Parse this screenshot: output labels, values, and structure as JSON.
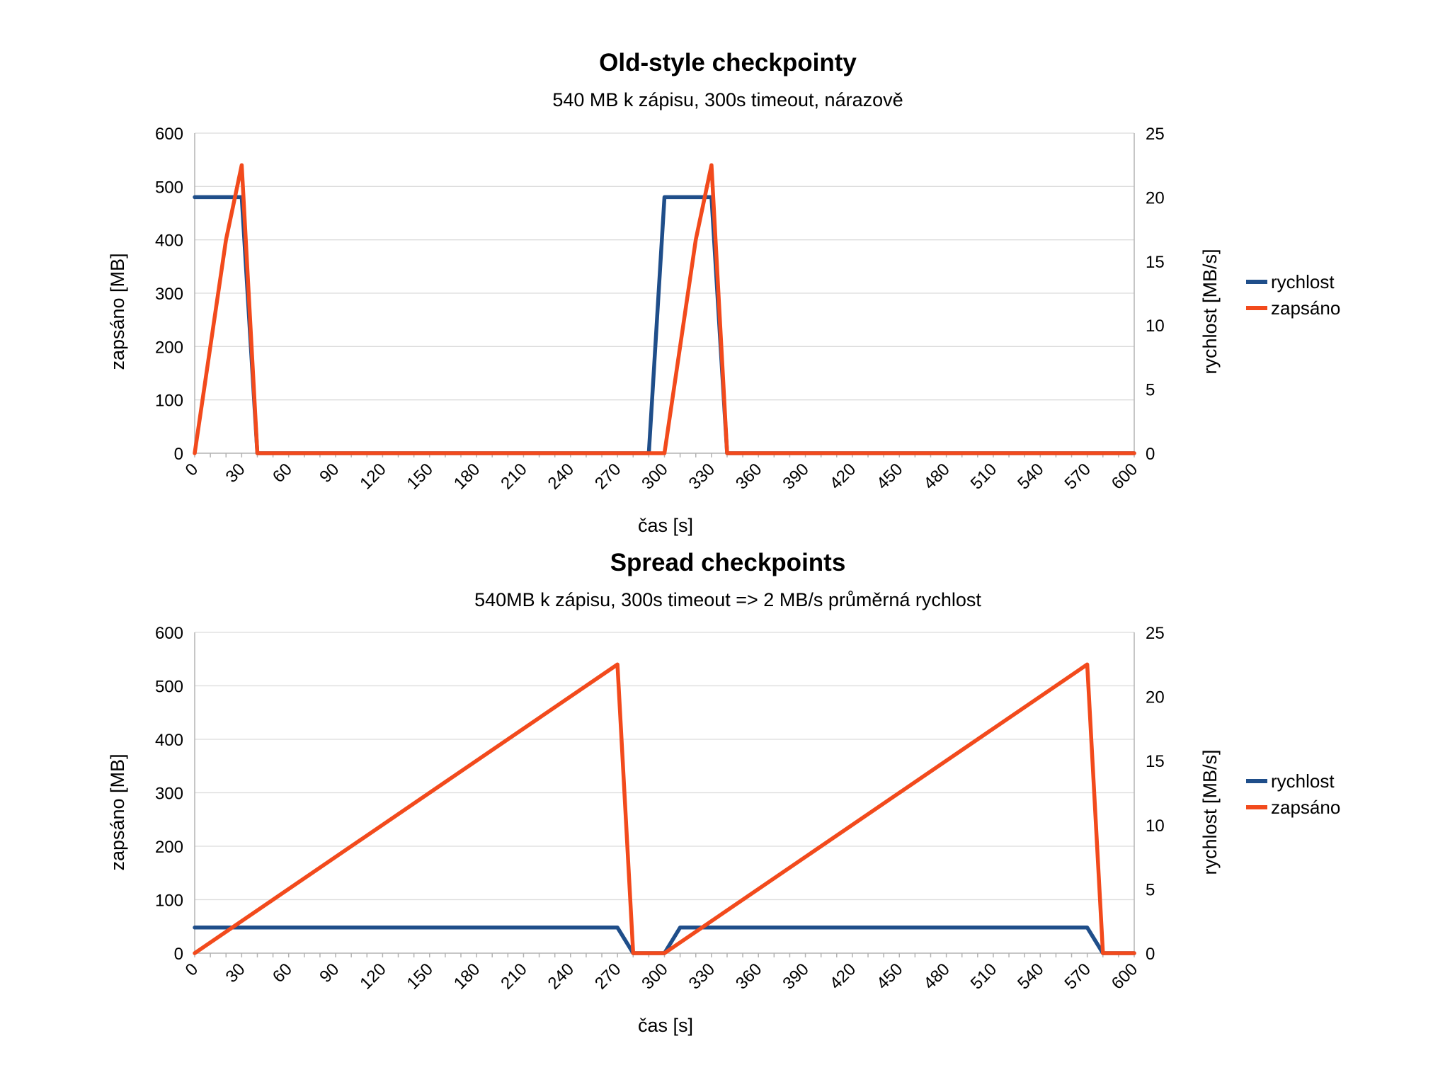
{
  "colors": {
    "rychlost": "#1f4e8a",
    "zapsano": "#f24a1c"
  },
  "chart_data": [
    {
      "type": "line",
      "title": "Old-style checkpointy",
      "subtitle": "540 MB k zápisu, 300s timeout, nárazově",
      "xlabel": "čas [s]",
      "ylabel": "zapsáno [MB]",
      "y2label": "rychlost [MB/s]",
      "xlim": [
        0,
        600
      ],
      "ylim": [
        0,
        600
      ],
      "y2lim": [
        0,
        25
      ],
      "xticks": [
        "0",
        "30",
        "60",
        "90",
        "120",
        "150",
        "180",
        "210",
        "240",
        "270",
        "300",
        "330",
        "360",
        "390",
        "420",
        "450",
        "480",
        "510",
        "540",
        "570",
        "600"
      ],
      "yticks": [
        "0",
        "100",
        "200",
        "300",
        "400",
        "500",
        "600"
      ],
      "y2ticks": [
        "0",
        "5",
        "10",
        "15",
        "20",
        "25"
      ],
      "legend_position": "right",
      "series": [
        {
          "name": "rychlost",
          "axis": "right",
          "color": "#1f4e8a",
          "x": [
            0,
            30,
            40,
            290,
            300,
            330,
            340,
            600
          ],
          "y": [
            20,
            20,
            0,
            0,
            20,
            20,
            0,
            0
          ]
        },
        {
          "name": "zapsáno",
          "axis": "left",
          "color": "#f24a1c",
          "x": [
            0,
            20,
            30,
            40,
            300,
            320,
            330,
            340,
            600
          ],
          "y": [
            0,
            400,
            540,
            0,
            0,
            400,
            540,
            0,
            0
          ]
        }
      ]
    },
    {
      "type": "line",
      "title": "Spread checkpoints",
      "subtitle": "540MB k zápisu, 300s timeout => 2 MB/s průměrná rychlost",
      "xlabel": "čas [s]",
      "ylabel": "zapsáno [MB]",
      "y2label": "rychlost [MB/s]",
      "xlim": [
        0,
        600
      ],
      "ylim": [
        0,
        600
      ],
      "y2lim": [
        0,
        25
      ],
      "xticks": [
        "0",
        "30",
        "60",
        "90",
        "120",
        "150",
        "180",
        "210",
        "240",
        "270",
        "300",
        "330",
        "360",
        "390",
        "420",
        "450",
        "480",
        "510",
        "540",
        "570",
        "600"
      ],
      "yticks": [
        "0",
        "100",
        "200",
        "300",
        "400",
        "500",
        "600"
      ],
      "y2ticks": [
        "0",
        "5",
        "10",
        "15",
        "20",
        "25"
      ],
      "legend_position": "right",
      "series": [
        {
          "name": "rychlost",
          "axis": "right",
          "color": "#1f4e8a",
          "x": [
            0,
            270,
            280,
            300,
            310,
            570,
            580,
            600
          ],
          "y": [
            2,
            2,
            0,
            0,
            2,
            2,
            0,
            0
          ]
        },
        {
          "name": "zapsáno",
          "axis": "left",
          "color": "#f24a1c",
          "x": [
            0,
            270,
            280,
            300,
            570,
            580,
            600
          ],
          "y": [
            0,
            540,
            0,
            0,
            540,
            0,
            0
          ]
        }
      ]
    }
  ]
}
